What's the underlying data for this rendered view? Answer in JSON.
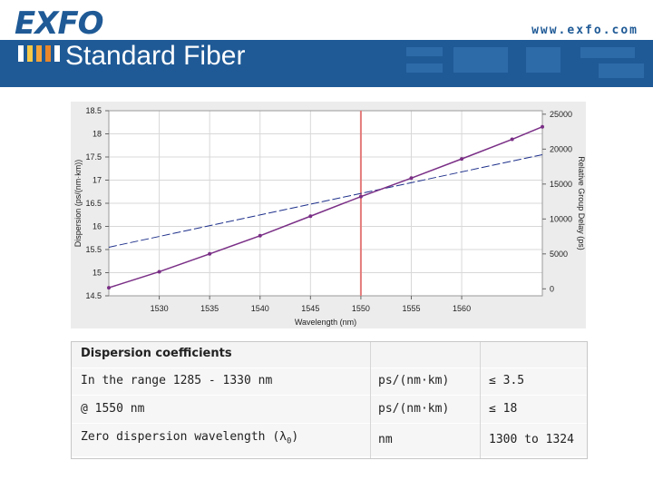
{
  "header": {
    "logo": "EXFO",
    "url": "www.exfo.com",
    "title": "Standard Fiber"
  },
  "colors": {
    "brand": "#1f5a96",
    "dispersion_series": "#1d2f8a",
    "delay_series": "#7a2f86",
    "marker_line": "#e37b7b"
  },
  "chart_data": {
    "type": "line",
    "xlabel": "Wavelength (nm)",
    "ylabel": "Dispersion (ps/(nm·km))",
    "y2label": "Relative Group Delay (ps)",
    "xlim": [
      1525,
      1568
    ],
    "ylim": [
      14.5,
      18.5
    ],
    "y2lim": [
      -1000,
      25500
    ],
    "x_ticks": [
      1530,
      1535,
      1540,
      1545,
      1550,
      1555,
      1560
    ],
    "x_tick_labels": [
      "1530",
      "1535",
      "1540",
      "1545",
      "1550",
      "1555",
      "1560"
    ],
    "y_ticks": [
      14.5,
      15,
      15.5,
      16,
      16.5,
      17,
      17.5,
      18,
      18.5
    ],
    "y_tick_labels": [
      "14.5",
      "15",
      "15.5",
      "16",
      "16.5",
      "17",
      "17.5",
      "18",
      "18.5"
    ],
    "y2_ticks": [
      0,
      5000,
      10000,
      15000,
      20000,
      25000
    ],
    "y2_tick_labels": [
      "0",
      "5000",
      "10000",
      "15000",
      "20000",
      "25000"
    ],
    "grid": true,
    "vertical_marker_x": 1550,
    "series": [
      {
        "axis": "left",
        "style": "dashed",
        "x": [
          1525,
          1568
        ],
        "y": [
          15.55,
          17.55
        ]
      },
      {
        "axis": "right",
        "style": "line+markers",
        "x": [
          1525,
          1530,
          1535,
          1540,
          1545,
          1550,
          1555,
          1560,
          1565,
          1568
        ],
        "y": [
          160,
          2450,
          5000,
          7600,
          10400,
          13200,
          15850,
          18600,
          21400,
          23200
        ]
      }
    ]
  },
  "table": {
    "title": "Dispersion coefficients",
    "rows": [
      {
        "label": "In the range 1285 - 1330 nm",
        "unit": "ps/(nm·km)",
        "value": "≤ 3.5"
      },
      {
        "label": "@ 1550 nm",
        "unit": "ps/(nm·km)",
        "value": "≤ 18"
      },
      {
        "label": "Zero dispersion wavelength (λ",
        "label_sub": "0",
        "label_end": ")",
        "unit": "nm",
        "value": "1300 to 1324"
      }
    ]
  }
}
